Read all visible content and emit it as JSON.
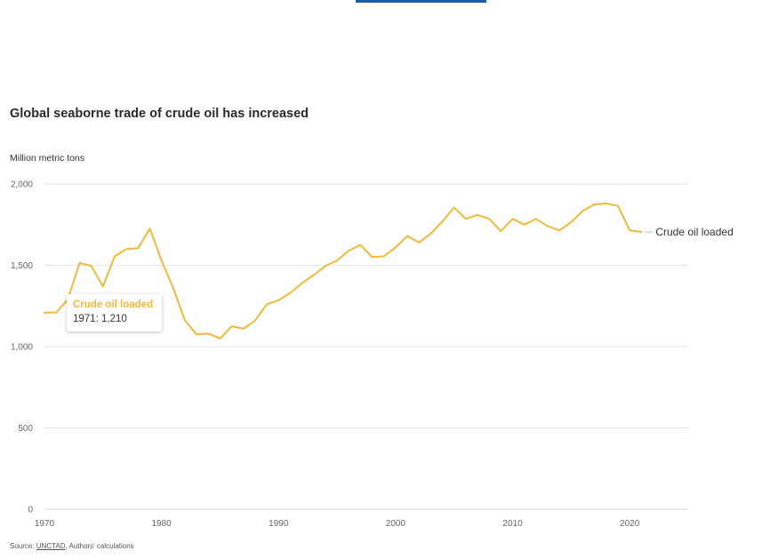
{
  "title": "Global seaborne trade of crude oil has increased",
  "source": {
    "prefix": "Source: ",
    "link_text": "UNCTAD",
    "suffix": ", Authors' calculations"
  },
  "tooltip": {
    "series": "Crude oil loaded",
    "year": "1971",
    "value": "1,210"
  },
  "colors": {
    "line": "#f0b93a",
    "grid": "#e6e6e6",
    "top_bar": "#1f5aa6"
  },
  "chart_data": {
    "type": "line",
    "ylabel": "Million metric tons",
    "xlabel": "",
    "xlim": [
      1970,
      2025
    ],
    "ylim": [
      0,
      2000
    ],
    "xticks": [
      1970,
      1980,
      1990,
      2000,
      2010,
      2020
    ],
    "xtick_labels": [
      "1970",
      "1980",
      "1990",
      "2000",
      "2010",
      "2020"
    ],
    "yticks": [
      0,
      500,
      1000,
      1500,
      2000
    ],
    "ytick_labels": [
      "0",
      "500",
      "1,000",
      "1,500",
      "2,000"
    ],
    "grid": true,
    "series": [
      {
        "name": "Crude oil loaded",
        "x": [
          1970,
          1971,
          1972,
          1973,
          1974,
          1975,
          1976,
          1977,
          1978,
          1979,
          1980,
          1981,
          1982,
          1983,
          1984,
          1985,
          1986,
          1987,
          1988,
          1989,
          1990,
          1991,
          1992,
          1993,
          1994,
          1995,
          1996,
          1997,
          1998,
          1999,
          2000,
          2001,
          2002,
          2003,
          2004,
          2005,
          2006,
          2007,
          2008,
          2009,
          2010,
          2011,
          2012,
          2013,
          2014,
          2015,
          2016,
          2017,
          2018,
          2019,
          2020,
          2021
        ],
        "y": [
          1208,
          1210,
          1290,
          1515,
          1495,
          1370,
          1555,
          1600,
          1605,
          1725,
          1530,
          1360,
          1160,
          1075,
          1080,
          1050,
          1125,
          1110,
          1160,
          1260,
          1285,
          1330,
          1390,
          1440,
          1495,
          1530,
          1590,
          1625,
          1550,
          1555,
          1610,
          1680,
          1640,
          1695,
          1770,
          1855,
          1785,
          1810,
          1785,
          1710,
          1785,
          1750,
          1785,
          1740,
          1715,
          1765,
          1835,
          1875,
          1880,
          1865,
          1715,
          1705
        ]
      }
    ]
  }
}
